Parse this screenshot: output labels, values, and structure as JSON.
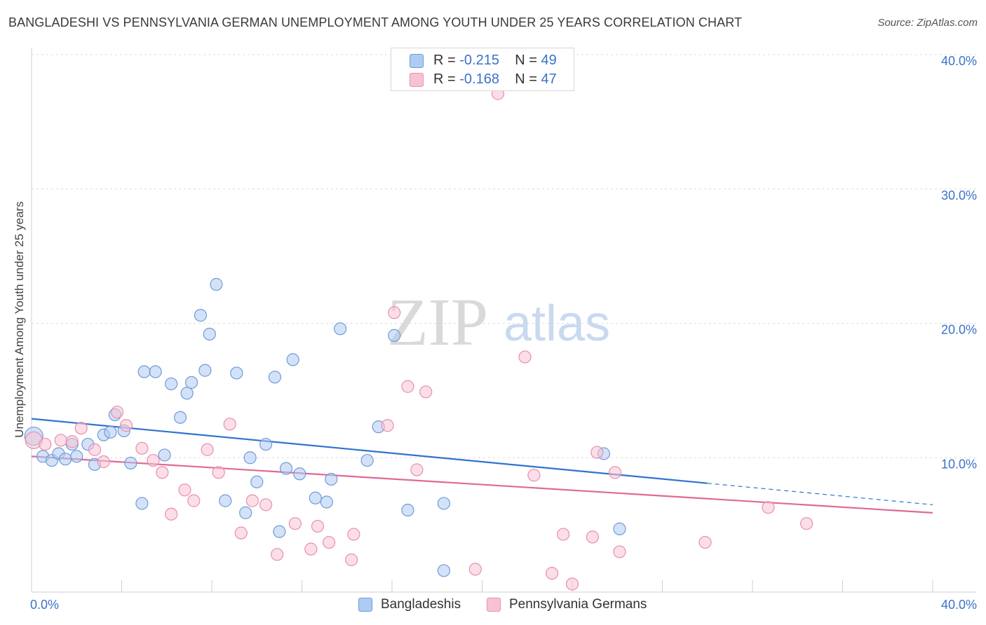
{
  "header": {
    "title": "BANGLADESHI VS PENNSYLVANIA GERMAN UNEMPLOYMENT AMONG YOUTH UNDER 25 YEARS CORRELATION CHART",
    "source": "Source: ZipAtlas.com"
  },
  "legend": {
    "blue": {
      "r_label": "R = ",
      "r_value": "-0.215",
      "n_label": "N = ",
      "n_value": "49"
    },
    "pink": {
      "r_label": "R = ",
      "r_value": "-0.168",
      "n_label": "N = ",
      "n_value": "47"
    }
  },
  "watermark": {
    "zip": "ZIP",
    "atlas": "atlas"
  },
  "chart_data": {
    "type": "scatter",
    "title": "BANGLADESHI VS PENNSYLVANIA GERMAN UNEMPLOYMENT AMONG YOUTH UNDER 25 YEARS CORRELATION CHART",
    "xlabel": "",
    "ylabel": "Unemployment Among Youth under 25 years",
    "xlim": [
      0,
      40
    ],
    "ylim": [
      0,
      40
    ],
    "x_tick_labels": [
      "0.0%",
      "40.0%"
    ],
    "y_ticks": [
      10,
      20,
      30,
      40
    ],
    "y_tick_labels": [
      "10.0%",
      "20.0%",
      "30.0%",
      "40.0%"
    ],
    "grid": true,
    "legend_placement": "top-center and bottom",
    "colors": {
      "blue_fill": "#aecbf3",
      "blue_stroke": "#6f9bd8",
      "blue_line": "#2f73cf",
      "pink_fill": "#f7c3d4",
      "pink_stroke": "#e88fad",
      "pink_line": "#e06994",
      "axis_text": "#3b72c8"
    },
    "series": [
      {
        "name": "Bangladeshis",
        "trend": {
          "x0": 0,
          "y0": 12.9,
          "x1": 30.0,
          "y1": 8.1,
          "dash_to_x": 40,
          "dash_to_y": 6.5
        },
        "points": [
          [
            0.1,
            11.6
          ],
          [
            0.5,
            10.1
          ],
          [
            0.9,
            9.8
          ],
          [
            1.2,
            10.3
          ],
          [
            1.5,
            9.9
          ],
          [
            1.8,
            11.0
          ],
          [
            2.0,
            10.1
          ],
          [
            2.5,
            11.0
          ],
          [
            2.8,
            9.5
          ],
          [
            3.2,
            11.7
          ],
          [
            3.5,
            11.9
          ],
          [
            3.7,
            13.2
          ],
          [
            4.1,
            12.0
          ],
          [
            4.4,
            9.6
          ],
          [
            4.9,
            6.6
          ],
          [
            5.0,
            16.4
          ],
          [
            5.5,
            16.4
          ],
          [
            5.9,
            10.2
          ],
          [
            6.2,
            15.5
          ],
          [
            6.6,
            13.0
          ],
          [
            6.9,
            14.8
          ],
          [
            7.1,
            15.6
          ],
          [
            7.5,
            20.6
          ],
          [
            7.7,
            16.5
          ],
          [
            7.9,
            19.2
          ],
          [
            8.2,
            22.9
          ],
          [
            8.6,
            6.8
          ],
          [
            9.1,
            16.3
          ],
          [
            9.5,
            5.9
          ],
          [
            9.7,
            10.0
          ],
          [
            10.0,
            8.2
          ],
          [
            10.4,
            11.0
          ],
          [
            10.8,
            16.0
          ],
          [
            11.0,
            4.5
          ],
          [
            11.3,
            9.2
          ],
          [
            11.6,
            17.3
          ],
          [
            11.9,
            8.8
          ],
          [
            12.6,
            7.0
          ],
          [
            13.1,
            6.7
          ],
          [
            13.3,
            8.4
          ],
          [
            13.7,
            19.6
          ],
          [
            14.9,
            9.8
          ],
          [
            15.4,
            12.3
          ],
          [
            16.1,
            19.1
          ],
          [
            16.7,
            6.1
          ],
          [
            18.3,
            6.6
          ],
          [
            18.3,
            1.6
          ],
          [
            25.4,
            10.3
          ],
          [
            26.1,
            4.7
          ]
        ]
      },
      {
        "name": "Pennsylvania Germans",
        "trend": {
          "x0": 0,
          "y0": 10.1,
          "x1": 40,
          "y1": 5.9
        },
        "points": [
          [
            0.1,
            11.3
          ],
          [
            0.6,
            11.0
          ],
          [
            1.3,
            11.3
          ],
          [
            1.8,
            11.2
          ],
          [
            2.2,
            12.2
          ],
          [
            2.8,
            10.6
          ],
          [
            3.2,
            9.7
          ],
          [
            3.8,
            13.4
          ],
          [
            4.2,
            12.4
          ],
          [
            4.9,
            10.7
          ],
          [
            5.4,
            9.8
          ],
          [
            5.8,
            8.9
          ],
          [
            6.2,
            5.8
          ],
          [
            6.8,
            7.6
          ],
          [
            7.2,
            6.8
          ],
          [
            7.8,
            10.6
          ],
          [
            8.3,
            8.9
          ],
          [
            8.8,
            12.5
          ],
          [
            9.3,
            4.4
          ],
          [
            9.8,
            6.8
          ],
          [
            10.4,
            6.5
          ],
          [
            10.9,
            2.8
          ],
          [
            11.7,
            5.1
          ],
          [
            12.4,
            3.2
          ],
          [
            12.7,
            4.9
          ],
          [
            13.2,
            3.7
          ],
          [
            14.2,
            2.4
          ],
          [
            14.3,
            4.3
          ],
          [
            15.8,
            12.4
          ],
          [
            16.1,
            20.8
          ],
          [
            16.7,
            15.3
          ],
          [
            17.1,
            9.1
          ],
          [
            17.5,
            14.9
          ],
          [
            19.7,
            1.7
          ],
          [
            20.7,
            37.1
          ],
          [
            21.9,
            17.5
          ],
          [
            22.3,
            8.7
          ],
          [
            23.1,
            1.4
          ],
          [
            23.6,
            4.3
          ],
          [
            24.0,
            0.6
          ],
          [
            24.9,
            4.1
          ],
          [
            25.1,
            10.4
          ],
          [
            25.9,
            8.9
          ],
          [
            26.1,
            3.0
          ],
          [
            29.9,
            3.7
          ],
          [
            32.7,
            6.3
          ],
          [
            34.4,
            5.1
          ]
        ]
      }
    ]
  }
}
